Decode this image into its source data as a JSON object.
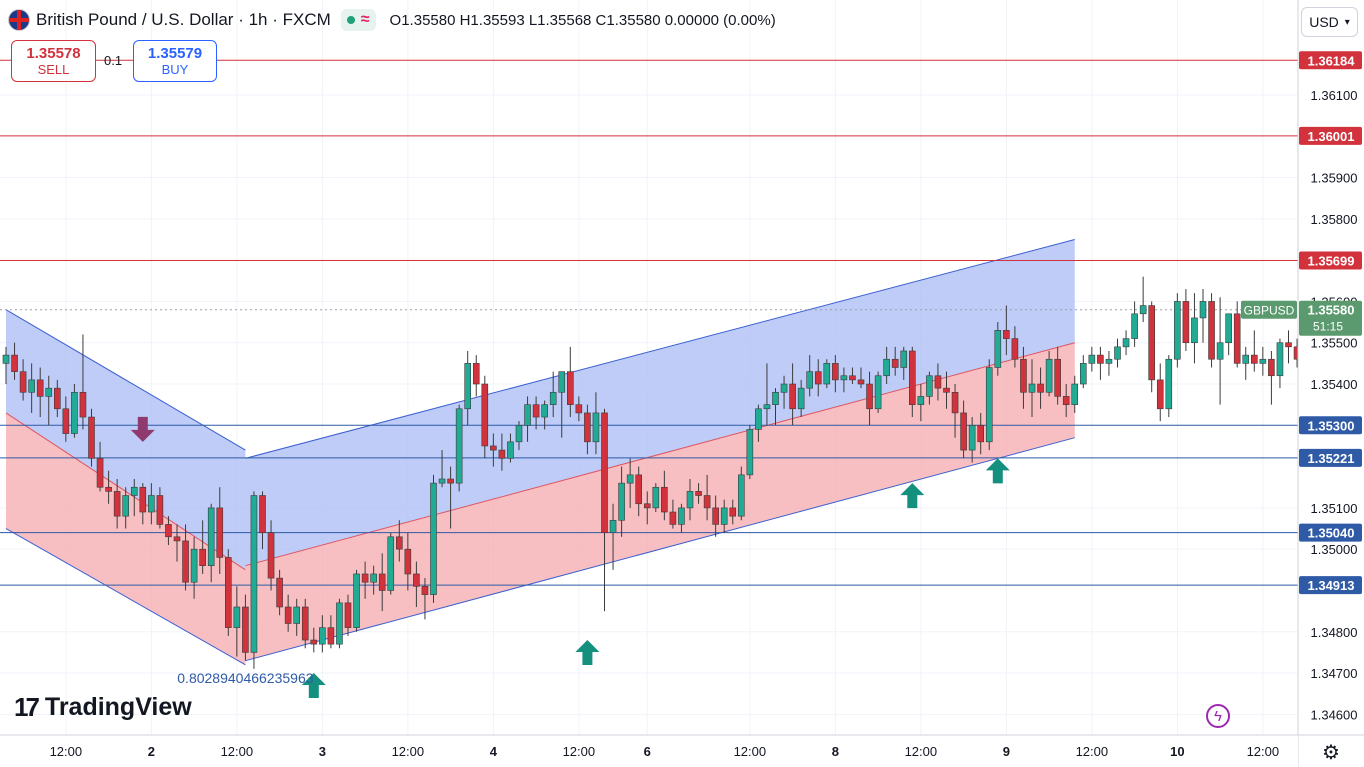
{
  "header": {
    "symbol": "British Pound / U.S. Dollar · 1h · FXCM",
    "ohlc": "O1.35580  H1.35593  L1.35568  C1.35580  0.00000 (0.00%)"
  },
  "trade": {
    "sell_price": "1.35578",
    "sell_label": "SELL",
    "qty": "0.1",
    "buy_price": "1.35579",
    "buy_label": "BUY"
  },
  "currency": "USD",
  "branding": "TradingView",
  "colors": {
    "up": "#22ab94",
    "down": "#d1323c",
    "resistance": "#d1323c",
    "support": "#2e5aa6",
    "channel_blue": "#aebff5",
    "channel_red": "#f6a9ad",
    "arrow_green": "#14907e",
    "arrow_purple": "#8e3a6e"
  },
  "chart_data": {
    "type": "candlestick",
    "symbol": "GBPUSD",
    "ylim": [
      1.3455,
      1.3633
    ],
    "y_ticks": [
      1.361,
      1.359,
      1.358,
      1.356,
      1.355,
      1.354,
      1.351,
      1.35,
      1.348,
      1.347,
      1.346
    ],
    "x_ticks": [
      {
        "label": "12:00",
        "bar": 7
      },
      {
        "label": "2",
        "bar": 17
      },
      {
        "label": "12:00",
        "bar": 27
      },
      {
        "label": "3",
        "bar": 37
      },
      {
        "label": "12:00",
        "bar": 47
      },
      {
        "label": "4",
        "bar": 57
      },
      {
        "label": "12:00",
        "bar": 67
      },
      {
        "label": "6",
        "bar": 75
      },
      {
        "label": "12:00",
        "bar": 87
      },
      {
        "label": "8",
        "bar": 97
      },
      {
        "label": "12:00",
        "bar": 107
      },
      {
        "label": "9",
        "bar": 117
      },
      {
        "label": "12:00",
        "bar": 127
      },
      {
        "label": "10",
        "bar": 137
      },
      {
        "label": "12:00",
        "bar": 147
      }
    ],
    "ohlc": [
      [
        1.3545,
        1.3549,
        1.354,
        1.3547
      ],
      [
        1.3547,
        1.355,
        1.3541,
        1.3543
      ],
      [
        1.3543,
        1.3546,
        1.3536,
        1.3538
      ],
      [
        1.3538,
        1.3545,
        1.3533,
        1.3541
      ],
      [
        1.3541,
        1.3544,
        1.3532,
        1.3537
      ],
      [
        1.3537,
        1.3542,
        1.353,
        1.3539
      ],
      [
        1.3539,
        1.3541,
        1.3532,
        1.3534
      ],
      [
        1.3534,
        1.3537,
        1.3526,
        1.3528
      ],
      [
        1.3528,
        1.354,
        1.3527,
        1.3538
      ],
      [
        1.3538,
        1.3552,
        1.3529,
        1.3532
      ],
      [
        1.3532,
        1.3534,
        1.352,
        1.3522
      ],
      [
        1.3522,
        1.3526,
        1.3514,
        1.3515
      ],
      [
        1.3515,
        1.3519,
        1.3511,
        1.3514
      ],
      [
        1.3514,
        1.3517,
        1.3505,
        1.3508
      ],
      [
        1.3508,
        1.3515,
        1.3505,
        1.3513
      ],
      [
        1.3513,
        1.3517,
        1.3508,
        1.3515
      ],
      [
        1.3515,
        1.3516,
        1.3506,
        1.3509
      ],
      [
        1.3509,
        1.3516,
        1.3506,
        1.3513
      ],
      [
        1.3513,
        1.3515,
        1.3505,
        1.3506
      ],
      [
        1.3506,
        1.3508,
        1.3501,
        1.3503
      ],
      [
        1.3503,
        1.3506,
        1.3497,
        1.3502
      ],
      [
        1.3502,
        1.3506,
        1.349,
        1.3492
      ],
      [
        1.3492,
        1.3503,
        1.3488,
        1.35
      ],
      [
        1.35,
        1.3507,
        1.3494,
        1.3496
      ],
      [
        1.3496,
        1.3511,
        1.3492,
        1.351
      ],
      [
        1.351,
        1.3515,
        1.3494,
        1.3498
      ],
      [
        1.3498,
        1.35,
        1.3479,
        1.3481
      ],
      [
        1.3481,
        1.3491,
        1.3474,
        1.3486
      ],
      [
        1.3486,
        1.3489,
        1.3473,
        1.3475
      ],
      [
        1.3475,
        1.3514,
        1.3471,
        1.3513
      ],
      [
        1.3513,
        1.3514,
        1.35,
        1.3504
      ],
      [
        1.3504,
        1.3507,
        1.349,
        1.3493
      ],
      [
        1.3493,
        1.3495,
        1.3484,
        1.3486
      ],
      [
        1.3486,
        1.3489,
        1.348,
        1.3482
      ],
      [
        1.3482,
        1.3488,
        1.3479,
        1.3486
      ],
      [
        1.3486,
        1.3488,
        1.3476,
        1.3478
      ],
      [
        1.3478,
        1.3481,
        1.3475,
        1.3477
      ],
      [
        1.3477,
        1.3484,
        1.3475,
        1.3481
      ],
      [
        1.3481,
        1.3484,
        1.3476,
        1.3477
      ],
      [
        1.3477,
        1.3488,
        1.3476,
        1.3487
      ],
      [
        1.3487,
        1.3489,
        1.3479,
        1.3481
      ],
      [
        1.3481,
        1.3495,
        1.348,
        1.3494
      ],
      [
        1.3494,
        1.3497,
        1.3488,
        1.3492
      ],
      [
        1.3492,
        1.3496,
        1.3489,
        1.3494
      ],
      [
        1.3494,
        1.3499,
        1.3485,
        1.349
      ],
      [
        1.349,
        1.3504,
        1.3489,
        1.3503
      ],
      [
        1.3503,
        1.3507,
        1.3497,
        1.35
      ],
      [
        1.35,
        1.3504,
        1.349,
        1.3494
      ],
      [
        1.3494,
        1.3497,
        1.3486,
        1.3491
      ],
      [
        1.3491,
        1.3493,
        1.3483,
        1.3489
      ],
      [
        1.3489,
        1.3518,
        1.3487,
        1.3516
      ],
      [
        1.3516,
        1.3524,
        1.3515,
        1.3517
      ],
      [
        1.3517,
        1.352,
        1.3505,
        1.3516
      ],
      [
        1.3516,
        1.3535,
        1.3514,
        1.3534
      ],
      [
        1.3534,
        1.3548,
        1.353,
        1.3545
      ],
      [
        1.3545,
        1.3547,
        1.3537,
        1.354
      ],
      [
        1.354,
        1.3542,
        1.3522,
        1.3525
      ],
      [
        1.3525,
        1.3528,
        1.352,
        1.3524
      ],
      [
        1.3524,
        1.3528,
        1.3519,
        1.3522
      ],
      [
        1.3522,
        1.3528,
        1.3521,
        1.3526
      ],
      [
        1.3526,
        1.3531,
        1.3524,
        1.353
      ],
      [
        1.353,
        1.3537,
        1.3526,
        1.3535
      ],
      [
        1.3535,
        1.3537,
        1.3529,
        1.3532
      ],
      [
        1.3532,
        1.3536,
        1.3529,
        1.3535
      ],
      [
        1.3535,
        1.3543,
        1.3532,
        1.3538
      ],
      [
        1.3538,
        1.3543,
        1.3527,
        1.3543
      ],
      [
        1.3543,
        1.3549,
        1.3532,
        1.3535
      ],
      [
        1.3535,
        1.3537,
        1.3531,
        1.3533
      ],
      [
        1.3533,
        1.3535,
        1.3523,
        1.3526
      ],
      [
        1.3526,
        1.3538,
        1.3523,
        1.3533
      ],
      [
        1.3533,
        1.3534,
        1.3485,
        1.3504
      ],
      [
        1.3504,
        1.3511,
        1.3495,
        1.3507
      ],
      [
        1.3507,
        1.352,
        1.3503,
        1.3516
      ],
      [
        1.3516,
        1.3522,
        1.351,
        1.3518
      ],
      [
        1.3518,
        1.352,
        1.3508,
        1.3511
      ],
      [
        1.3511,
        1.3514,
        1.3506,
        1.351
      ],
      [
        1.351,
        1.3516,
        1.3509,
        1.3515
      ],
      [
        1.3515,
        1.3519,
        1.3507,
        1.3509
      ],
      [
        1.3509,
        1.3512,
        1.3505,
        1.3506
      ],
      [
        1.3506,
        1.3511,
        1.3504,
        1.351
      ],
      [
        1.351,
        1.3517,
        1.3507,
        1.3514
      ],
      [
        1.3514,
        1.3516,
        1.3511,
        1.3513
      ],
      [
        1.3513,
        1.3518,
        1.3507,
        1.351
      ],
      [
        1.351,
        1.3513,
        1.3503,
        1.3506
      ],
      [
        1.3506,
        1.3512,
        1.3504,
        1.351
      ],
      [
        1.351,
        1.3512,
        1.3506,
        1.3508
      ],
      [
        1.3508,
        1.352,
        1.3507,
        1.3518
      ],
      [
        1.3518,
        1.353,
        1.3517,
        1.3529
      ],
      [
        1.3529,
        1.3535,
        1.3526,
        1.3534
      ],
      [
        1.3534,
        1.3545,
        1.353,
        1.3535
      ],
      [
        1.3535,
        1.3539,
        1.353,
        1.3538
      ],
      [
        1.3538,
        1.3542,
        1.3534,
        1.354
      ],
      [
        1.354,
        1.3545,
        1.353,
        1.3534
      ],
      [
        1.3534,
        1.3541,
        1.3532,
        1.3539
      ],
      [
        1.3539,
        1.3547,
        1.3537,
        1.3543
      ],
      [
        1.3543,
        1.3546,
        1.3537,
        1.354
      ],
      [
        1.354,
        1.3546,
        1.3539,
        1.3545
      ],
      [
        1.3545,
        1.3547,
        1.3538,
        1.3541
      ],
      [
        1.3541,
        1.3544,
        1.3538,
        1.3542
      ],
      [
        1.3542,
        1.3544,
        1.354,
        1.3541
      ],
      [
        1.3541,
        1.3544,
        1.3539,
        1.354
      ],
      [
        1.354,
        1.3543,
        1.353,
        1.3534
      ],
      [
        1.3534,
        1.3543,
        1.3533,
        1.3542
      ],
      [
        1.3542,
        1.3549,
        1.354,
        1.3546
      ],
      [
        1.3546,
        1.3549,
        1.3542,
        1.3544
      ],
      [
        1.3544,
        1.3549,
        1.3541,
        1.3548
      ],
      [
        1.3548,
        1.3549,
        1.3532,
        1.3535
      ],
      [
        1.3535,
        1.354,
        1.3531,
        1.3537
      ],
      [
        1.3537,
        1.3543,
        1.3535,
        1.3542
      ],
      [
        1.3542,
        1.3545,
        1.3536,
        1.3539
      ],
      [
        1.3539,
        1.3543,
        1.3534,
        1.3538
      ],
      [
        1.3538,
        1.354,
        1.3527,
        1.3533
      ],
      [
        1.3533,
        1.3536,
        1.3522,
        1.3524
      ],
      [
        1.3524,
        1.3532,
        1.3521,
        1.353
      ],
      [
        1.353,
        1.3533,
        1.3523,
        1.3526
      ],
      [
        1.3526,
        1.3546,
        1.3524,
        1.3544
      ],
      [
        1.3544,
        1.3555,
        1.3542,
        1.3553
      ],
      [
        1.3553,
        1.3559,
        1.3547,
        1.3551
      ],
      [
        1.3551,
        1.3554,
        1.3544,
        1.3546
      ],
      [
        1.3546,
        1.3549,
        1.3534,
        1.3538
      ],
      [
        1.3538,
        1.3546,
        1.3532,
        1.354
      ],
      [
        1.354,
        1.3544,
        1.3534,
        1.3538
      ],
      [
        1.3538,
        1.3548,
        1.3537,
        1.3546
      ],
      [
        1.3546,
        1.3549,
        1.3535,
        1.3537
      ],
      [
        1.3537,
        1.354,
        1.3532,
        1.3535
      ],
      [
        1.3535,
        1.3542,
        1.3533,
        1.354
      ],
      [
        1.354,
        1.3547,
        1.3539,
        1.3545
      ],
      [
        1.3545,
        1.3549,
        1.3543,
        1.3547
      ],
      [
        1.3547,
        1.3549,
        1.3541,
        1.3545
      ],
      [
        1.3545,
        1.3548,
        1.3542,
        1.3546
      ],
      [
        1.3546,
        1.3551,
        1.3544,
        1.3549
      ],
      [
        1.3549,
        1.3553,
        1.3547,
        1.3551
      ],
      [
        1.3551,
        1.356,
        1.3549,
        1.3557
      ],
      [
        1.3557,
        1.3566,
        1.3555,
        1.3559
      ],
      [
        1.3559,
        1.356,
        1.3538,
        1.3541
      ],
      [
        1.3541,
        1.3545,
        1.3531,
        1.3534
      ],
      [
        1.3534,
        1.3547,
        1.3532,
        1.3546
      ],
      [
        1.3546,
        1.3562,
        1.3544,
        1.356
      ],
      [
        1.356,
        1.3563,
        1.3548,
        1.355
      ],
      [
        1.355,
        1.3562,
        1.3545,
        1.3556
      ],
      [
        1.3556,
        1.3563,
        1.355,
        1.356
      ],
      [
        1.356,
        1.3562,
        1.3544,
        1.3546
      ],
      [
        1.3546,
        1.3561,
        1.3535,
        1.355
      ],
      [
        1.355,
        1.3556,
        1.3547,
        1.3557
      ],
      [
        1.3557,
        1.356,
        1.3544,
        1.3545
      ],
      [
        1.3545,
        1.3549,
        1.3541,
        1.3547
      ],
      [
        1.3547,
        1.3553,
        1.3543,
        1.3545
      ],
      [
        1.3545,
        1.3549,
        1.3542,
        1.3546
      ],
      [
        1.3546,
        1.3548,
        1.3535,
        1.3542
      ],
      [
        1.3542,
        1.3551,
        1.3539,
        1.355
      ],
      [
        1.355,
        1.3553,
        1.3545,
        1.3549
      ],
      [
        1.3549,
        1.3551,
        1.3544,
        1.3546
      ],
      [
        1.3546,
        1.3558,
        1.3545,
        1.3556
      ],
      [
        1.3556,
        1.356,
        1.3554,
        1.3559
      ],
      [
        1.3559,
        1.356,
        1.3552,
        1.3554
      ],
      [
        1.3554,
        1.3557,
        1.3551,
        1.3552
      ],
      [
        1.3552,
        1.3559,
        1.3551,
        1.3558
      ],
      [
        1.3558,
        1.3559,
        1.3557,
        1.3558
      ]
    ],
    "horizontal_levels": [
      {
        "price": 1.36184,
        "label": "1.36184",
        "kind": "resistance"
      },
      {
        "price": 1.36001,
        "label": "1.36001",
        "kind": "resistance"
      },
      {
        "price": 1.35699,
        "label": "1.35699",
        "kind": "resistance"
      },
      {
        "price": 1.353,
        "label": "1.35300",
        "kind": "support"
      },
      {
        "price": 1.35221,
        "label": "1.35221",
        "kind": "support"
      },
      {
        "price": 1.3504,
        "label": "1.35040",
        "kind": "support"
      },
      {
        "price": 1.34913,
        "label": "1.34913",
        "kind": "support"
      }
    ],
    "last_price": {
      "symbol": "GBPUSD",
      "price": 1.3558,
      "label": "1.35580",
      "countdown": "51:15"
    },
    "channels": [
      {
        "name": "down",
        "from_bar": 0,
        "to_bar": 28,
        "top": [
          1.3558,
          1.3524
        ],
        "mid": [
          1.3533,
          1.3495
        ],
        "bottom": [
          1.3505,
          1.3472
        ]
      },
      {
        "name": "up",
        "from_bar": 28,
        "to_bar": 125,
        "top": [
          1.3522,
          1.3575
        ],
        "mid": [
          1.3496,
          1.355
        ],
        "bottom": [
          1.3473,
          1.3527
        ]
      }
    ],
    "arrows": [
      {
        "bar": 16,
        "price": 1.3526,
        "dir": "down",
        "color": "purple"
      },
      {
        "bar": 36,
        "price": 1.347,
        "dir": "up",
        "color": "green"
      },
      {
        "bar": 68,
        "price": 1.3478,
        "dir": "up",
        "color": "green"
      },
      {
        "bar": 106,
        "price": 1.3516,
        "dir": "up",
        "color": "green"
      },
      {
        "bar": 116,
        "price": 1.3522,
        "dir": "up",
        "color": "green"
      }
    ],
    "annotation": {
      "text": "0.8028940466235963",
      "bar": 28,
      "price": 1.3471
    }
  }
}
